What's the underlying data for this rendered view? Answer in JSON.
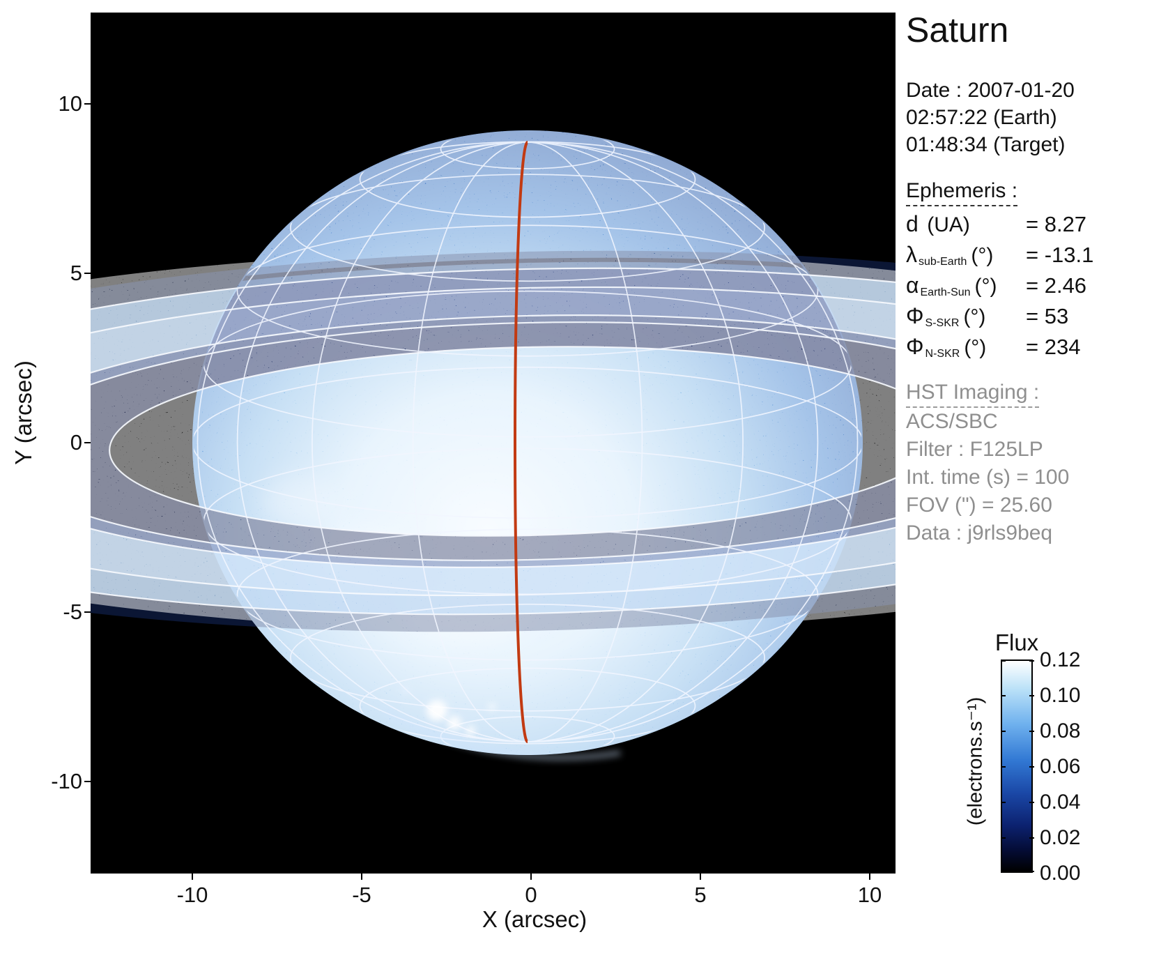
{
  "title": "Saturn",
  "observation": {
    "lines": [
      "Date : 2007-01-20",
      "02:57:22 (Earth)",
      "01:48:34 (Target)"
    ]
  },
  "ephemeris": {
    "heading": "Ephemeris :",
    "rows": [
      {
        "symbol": "d",
        "sub": "",
        "unit": "(UA)",
        "value": "= 8.27"
      },
      {
        "symbol": "λ",
        "sub": "sub-Earth",
        "unit": "(°)",
        "value": "= -13.1"
      },
      {
        "symbol": "α",
        "sub": "Earth-Sun",
        "unit": "(°)",
        "value": "= 2.46"
      },
      {
        "symbol": "Φ",
        "sub": "S-SKR",
        "unit": "(°)",
        "value": "= 53"
      },
      {
        "symbol": "Φ",
        "sub": "N-SKR",
        "unit": "(°)",
        "value": "= 234"
      }
    ]
  },
  "hst": {
    "heading": "HST Imaging :",
    "lines": [
      "ACS/SBC",
      "Filter : F125LP",
      "Int. time (s) = 100",
      "FOV (\") = 25.60",
      "Data : j9rls9beq"
    ]
  },
  "chart_data": {
    "type": "heatmap",
    "title": "Saturn",
    "xlabel": "X (arcsec)",
    "ylabel": "Y (arcsec)",
    "x_ticks": [
      -10,
      -5,
      0,
      5,
      10
    ],
    "y_ticks": [
      10,
      5,
      0,
      -5,
      -10
    ],
    "x_range": [
      -13.0,
      10.9
    ],
    "y_range": [
      -12.7,
      12.7
    ],
    "grid": false,
    "legend": "none",
    "colorbar": {
      "title": "Flux",
      "unit": "(electrons.s⁻¹)",
      "min": 0.0,
      "max": 0.12,
      "ticks": [
        "0.12",
        "0.10",
        "0.08",
        "0.06",
        "0.04",
        "0.02",
        "0.00"
      ],
      "gradient": [
        {
          "color": "#ffffff",
          "pos": 0
        },
        {
          "color": "#bce2f8",
          "pos": 13
        },
        {
          "color": "#6fb1ee",
          "pos": 30
        },
        {
          "color": "#3279d4",
          "pos": 47
        },
        {
          "color": "#1a47a6",
          "pos": 63
        },
        {
          "color": "#0c2270",
          "pos": 78
        },
        {
          "color": "#040c35",
          "pos": 90
        },
        {
          "color": "#000000",
          "pos": 100
        }
      ]
    },
    "features": [
      "Saturn disk rendered in blue false color with bright south-central region",
      "ring system bands crossing the full field, dark where they pass over the disk",
      "white planetographic lat/lon grid overlay converging at the south pole",
      "white ellipse overlays marking ring edges",
      "red central-meridian line",
      "bright auroral spots near the south pole limb"
    ],
    "accent_colors": {
      "meridian_red": "#c23a12",
      "grid_white": "#f2f6ff",
      "sky_background": "#000000"
    }
  }
}
